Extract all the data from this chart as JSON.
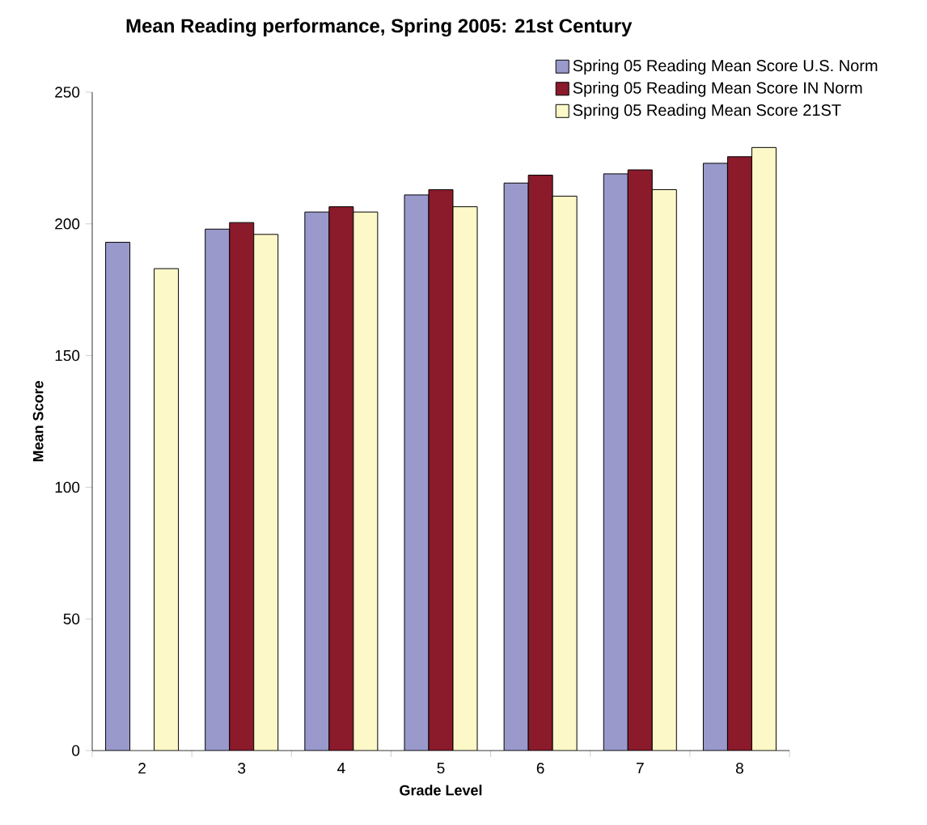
{
  "chart_data": {
    "type": "bar",
    "title": "Mean Reading performance, Spring 2005: 21st Century",
    "xlabel": "Grade Level",
    "ylabel": "Mean Score",
    "categories": [
      "2",
      "3",
      "4",
      "5",
      "6",
      "7",
      "8"
    ],
    "series": [
      {
        "name": "Spring 05 Reading Mean Score U.S. Norm",
        "color": "#9999cc",
        "values": [
          193,
          198,
          204.5,
          211,
          215.5,
          219,
          223
        ]
      },
      {
        "name": "Spring 05 Reading Mean Score IN Norm",
        "color": "#8b1a2b",
        "values": [
          null,
          200.5,
          206.5,
          213,
          218.5,
          220.5,
          225.5
        ]
      },
      {
        "name": "Spring 05 Reading Mean Score 21ST",
        "color": "#fdf8c8",
        "values": [
          183,
          196,
          204.5,
          206.5,
          210.5,
          213,
          229
        ]
      }
    ],
    "ylim": [
      0,
      250
    ],
    "yticks": [
      0,
      50,
      100,
      150,
      200,
      250
    ],
    "grid": false,
    "legend": "top right"
  }
}
